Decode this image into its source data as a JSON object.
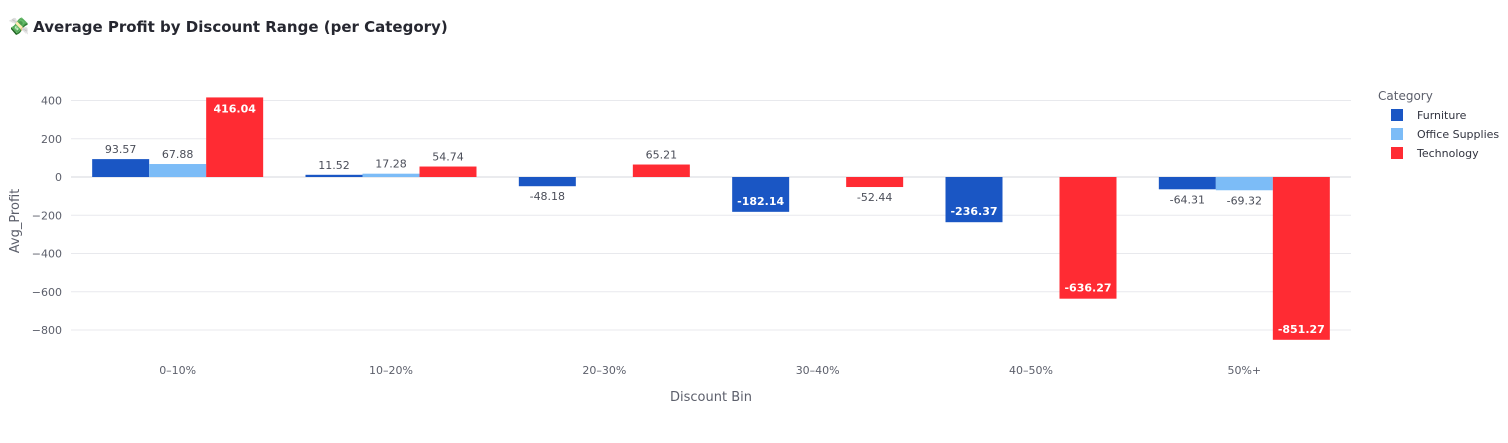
{
  "header": {
    "icon": "💸",
    "title": "Average Profit by Discount Range (per Category)"
  },
  "chart_data": {
    "type": "bar",
    "title": "Average Profit by Discount Range (per Category)",
    "xlabel": "Discount Bin",
    "ylabel": "Avg_Profit",
    "categories": [
      "0–10%",
      "10–20%",
      "20–30%",
      "30–40%",
      "40–50%",
      "50%+"
    ],
    "ylim": [
      -900,
      450
    ],
    "yticks": [
      400,
      200,
      0,
      -200,
      -400,
      -600,
      -800
    ],
    "ytick_labels": [
      "400",
      "200",
      "0",
      "−200",
      "−400",
      "−600",
      "−800"
    ],
    "grid": true,
    "legend_title": "Category",
    "legend_position": "right",
    "series": [
      {
        "name": "Furniture",
        "color": "#1a56c4",
        "values": [
          93.57,
          11.52,
          -48.18,
          -182.14,
          -236.37,
          -64.31
        ],
        "labels": [
          "93.57",
          "11.52",
          "-48.18",
          "-182.14",
          "-236.37",
          "-64.31"
        ]
      },
      {
        "name": "Office Supplies",
        "color": "#7cbcf7",
        "values": [
          67.88,
          17.28,
          null,
          null,
          null,
          -69.32
        ],
        "labels": [
          "67.88",
          "17.28",
          "",
          "",
          "",
          "-69.32"
        ]
      },
      {
        "name": "Technology",
        "color": "#ff2b33",
        "values": [
          416.04,
          54.74,
          65.21,
          -52.44,
          -636.27,
          -851.27
        ],
        "labels": [
          "416.04",
          "54.74",
          "65.21",
          "-52.44",
          "-636.27",
          "-851.27"
        ]
      }
    ]
  }
}
